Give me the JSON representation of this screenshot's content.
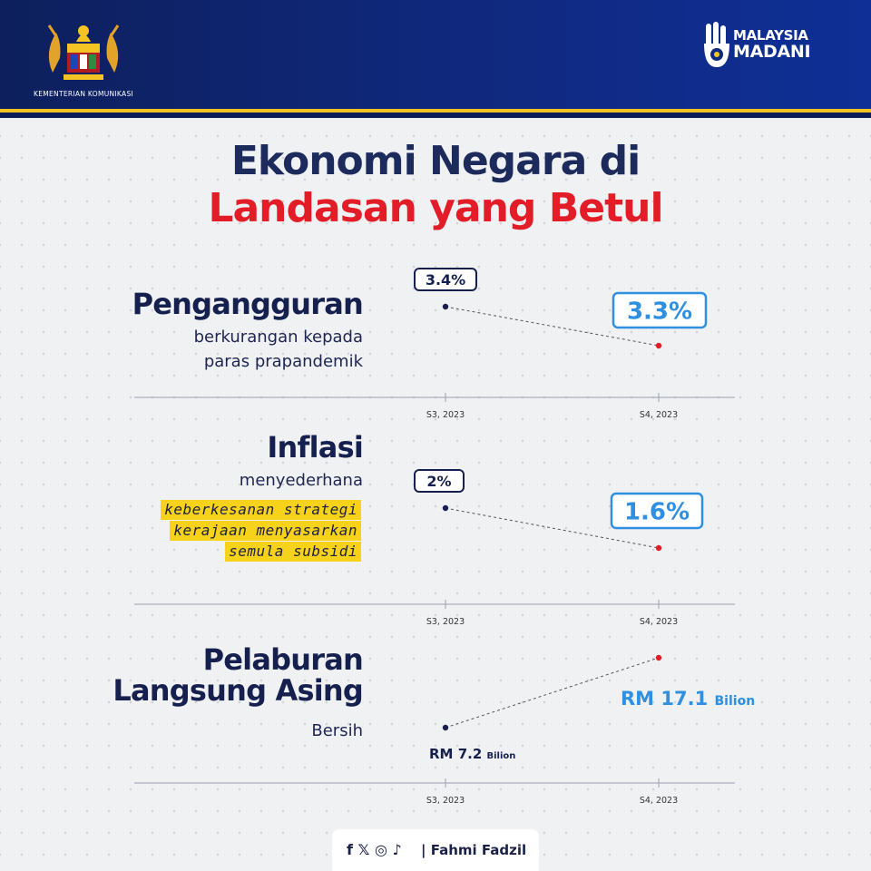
{
  "header": {
    "ministry": "KEMENTERIAN KOMUNIKASI",
    "brand_line1": "MALAYSIA",
    "brand_line2": "MADANI"
  },
  "title": {
    "line1": "Ekonomi Negara di",
    "line2": "Landasan yang Betul"
  },
  "colors": {
    "navy": "#16204e",
    "red": "#e21d27",
    "blue": "#2f8fe0",
    "highlight": "#f7d21a"
  },
  "sections": [
    {
      "title": "Pengangguran",
      "subtitle_lines": [
        "berkurangan kepada",
        "paras prapandemik"
      ]
    },
    {
      "title": "Inflasi",
      "subtitle_lines": [
        "menyederhana"
      ],
      "highlight_lines": [
        "keberkesanan strategi",
        "kerajaan menyasarkan",
        "semula subsidi"
      ]
    },
    {
      "title_lines": [
        "Pelaburan",
        "Langsung Asing"
      ],
      "subtitle_lines": [
        "Bersih"
      ]
    }
  ],
  "chart_data": [
    {
      "type": "line",
      "x": [
        "S3, 2023",
        "S4, 2023"
      ],
      "values": [
        3.4,
        3.3
      ],
      "labels": [
        "3.4%",
        "3.3%"
      ]
    },
    {
      "type": "line",
      "x": [
        "S3, 2023",
        "S4, 2023"
      ],
      "values": [
        2.0,
        1.6
      ],
      "labels": [
        "2%",
        "1.6%"
      ]
    },
    {
      "type": "line",
      "x": [
        "S3, 2023",
        "S4, 2023"
      ],
      "values": [
        7.2,
        17.1
      ],
      "labels": [
        "RM 7.2",
        "RM 17.1"
      ],
      "unit": "Bilion"
    }
  ],
  "footer": {
    "icons": "f 𝕏 ◎ ♪",
    "name": "| Fahmi Fadzil"
  }
}
